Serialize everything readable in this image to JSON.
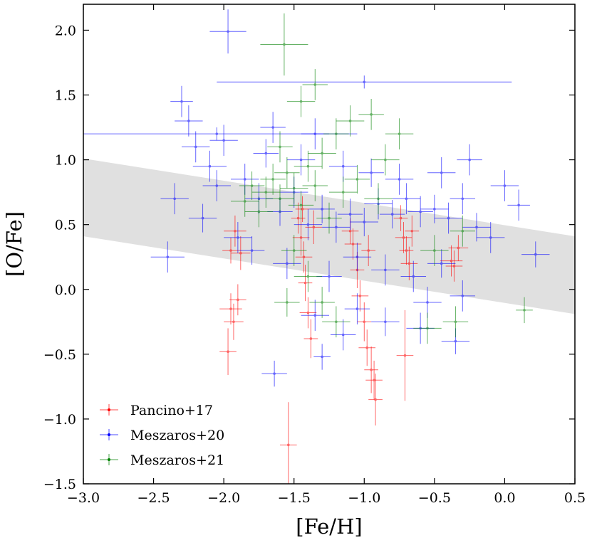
{
  "chart_data": {
    "type": "scatter",
    "title": "",
    "xlabel": "[Fe/H]",
    "ylabel": "[O/Fe]",
    "xlim": [
      -3.0,
      0.5
    ],
    "ylim": [
      -1.5,
      2.2
    ],
    "x_ticks": [
      {
        "value": -3.0,
        "label": "−3.0"
      },
      {
        "value": -2.5,
        "label": "−2.5"
      },
      {
        "value": -2.0,
        "label": "−2.0"
      },
      {
        "value": -1.5,
        "label": "−1.5"
      },
      {
        "value": -1.0,
        "label": "−1.0"
      },
      {
        "value": -0.5,
        "label": "−0.5"
      },
      {
        "value": 0.0,
        "label": "0.0"
      },
      {
        "value": 0.5,
        "label": "0.5"
      }
    ],
    "y_ticks": [
      {
        "value": -1.5,
        "label": "−1.5"
      },
      {
        "value": -1.0,
        "label": "−1.0"
      },
      {
        "value": -0.5,
        "label": "−0.5"
      },
      {
        "value": 0.0,
        "label": "0.0"
      },
      {
        "value": 0.5,
        "label": "0.5"
      },
      {
        "value": 1.0,
        "label": "1.0"
      },
      {
        "value": 1.5,
        "label": "1.5"
      },
      {
        "value": 2.0,
        "label": "2.0"
      }
    ],
    "grid": false,
    "legend_position": "lower-left",
    "shaded_band": {
      "color": "#e0e0e0",
      "lower": [
        [
          -3.0,
          0.41
        ],
        [
          0.5,
          -0.19
        ]
      ],
      "upper": [
        [
          -3.0,
          1.01
        ],
        [
          0.5,
          0.41
        ]
      ]
    },
    "series": [
      {
        "name": "Pancino+17",
        "color": "#ff0000",
        "points": [
          {
            "x": -1.97,
            "y": -0.48,
            "xerr": 0.06,
            "yerr": 0.18
          },
          {
            "x": -1.95,
            "y": -0.15,
            "xerr": 0.08,
            "yerr": 0.12
          },
          {
            "x": -1.93,
            "y": -0.25,
            "xerr": 0.07,
            "yerr": 0.14
          },
          {
            "x": -1.9,
            "y": -0.08,
            "xerr": 0.06,
            "yerr": 0.12
          },
          {
            "x": -1.92,
            "y": 0.45,
            "xerr": 0.08,
            "yerr": 0.12
          },
          {
            "x": -1.88,
            "y": 0.28,
            "xerr": 0.07,
            "yerr": 0.13
          },
          {
            "x": -1.95,
            "y": 0.3,
            "xerr": 0.06,
            "yerr": 0.1
          },
          {
            "x": -1.54,
            "y": -1.2,
            "xerr": 0.06,
            "yerr": 0.33
          },
          {
            "x": -1.47,
            "y": 0.55,
            "xerr": 0.05,
            "yerr": 0.12
          },
          {
            "x": -1.45,
            "y": 0.4,
            "xerr": 0.06,
            "yerr": 0.14
          },
          {
            "x": -1.43,
            "y": 0.25,
            "xerr": 0.06,
            "yerr": 0.12
          },
          {
            "x": -1.42,
            "y": 0.05,
            "xerr": 0.05,
            "yerr": 0.14
          },
          {
            "x": -1.4,
            "y": -0.18,
            "xerr": 0.06,
            "yerr": 0.12
          },
          {
            "x": -1.38,
            "y": -0.38,
            "xerr": 0.05,
            "yerr": 0.15
          },
          {
            "x": -1.44,
            "y": 0.62,
            "xerr": 0.05,
            "yerr": 0.1
          },
          {
            "x": -1.36,
            "y": 0.48,
            "xerr": 0.06,
            "yerr": 0.13
          },
          {
            "x": -1.08,
            "y": 0.35,
            "xerr": 0.06,
            "yerr": 0.12
          },
          {
            "x": -1.05,
            "y": 0.15,
            "xerr": 0.05,
            "yerr": 0.14
          },
          {
            "x": -1.03,
            "y": -0.05,
            "xerr": 0.06,
            "yerr": 0.12
          },
          {
            "x": -1.0,
            "y": -0.25,
            "xerr": 0.05,
            "yerr": 0.15
          },
          {
            "x": -0.98,
            "y": -0.45,
            "xerr": 0.06,
            "yerr": 0.14
          },
          {
            "x": -0.95,
            "y": -0.62,
            "xerr": 0.05,
            "yerr": 0.18
          },
          {
            "x": -0.93,
            "y": -0.7,
            "xerr": 0.06,
            "yerr": 0.15
          },
          {
            "x": -0.92,
            "y": -0.85,
            "xerr": 0.05,
            "yerr": 0.2
          },
          {
            "x": -1.1,
            "y": 0.45,
            "xerr": 0.06,
            "yerr": 0.1
          },
          {
            "x": -0.97,
            "y": 0.3,
            "xerr": 0.05,
            "yerr": 0.12
          },
          {
            "x": -0.74,
            "y": 0.55,
            "xerr": 0.05,
            "yerr": 0.1
          },
          {
            "x": -0.72,
            "y": 0.4,
            "xerr": 0.06,
            "yerr": 0.12
          },
          {
            "x": -0.7,
            "y": 0.3,
            "xerr": 0.05,
            "yerr": 0.11
          },
          {
            "x": -0.68,
            "y": 0.2,
            "xerr": 0.06,
            "yerr": 0.13
          },
          {
            "x": -0.71,
            "y": -0.51,
            "xerr": 0.06,
            "yerr": 0.35
          },
          {
            "x": -0.66,
            "y": 0.45,
            "xerr": 0.05,
            "yerr": 0.12
          },
          {
            "x": -0.38,
            "y": 0.22,
            "xerr": 0.08,
            "yerr": 0.12
          },
          {
            "x": -0.33,
            "y": 0.32,
            "xerr": 0.07,
            "yerr": 0.1
          },
          {
            "x": -0.36,
            "y": 0.18,
            "xerr": 0.06,
            "yerr": 0.12
          }
        ]
      },
      {
        "name": "Meszaros+20",
        "color": "#0000ff",
        "points": [
          {
            "x": -1.97,
            "y": 1.99,
            "xerr": 0.13,
            "yerr": 0.17
          },
          {
            "x": -1.0,
            "y": 1.6,
            "xerr": 1.05,
            "yerr": 0.05
          },
          {
            "x": -2.05,
            "y": 1.2,
            "xerr": 1.0,
            "yerr": 0.05
          },
          {
            "x": -2.3,
            "y": 1.45,
            "xerr": 0.08,
            "yerr": 0.12
          },
          {
            "x": -2.25,
            "y": 1.3,
            "xerr": 0.1,
            "yerr": 0.12
          },
          {
            "x": -1.64,
            "y": -0.65,
            "xerr": 0.09,
            "yerr": 0.1
          },
          {
            "x": -2.4,
            "y": 0.25,
            "xerr": 0.12,
            "yerr": 0.12
          },
          {
            "x": 0.1,
            "y": 0.65,
            "xerr": 0.08,
            "yerr": 0.12
          },
          {
            "x": 0.22,
            "y": 0.27,
            "xerr": 0.1,
            "yerr": 0.1
          },
          {
            "x": -0.35,
            "y": -0.4,
            "xerr": 0.1,
            "yerr": 0.1
          },
          {
            "x": -1.3,
            "y": -0.52,
            "xerr": 0.06,
            "yerr": 0.1
          },
          {
            "x": -2.1,
            "y": 0.95,
            "xerr": 0.12,
            "yerr": 0.12
          },
          {
            "x": -1.85,
            "y": 0.85,
            "xerr": 0.1,
            "yerr": 0.12
          },
          {
            "x": -1.75,
            "y": 0.7,
            "xerr": 0.1,
            "yerr": 0.12
          },
          {
            "x": -1.6,
            "y": 0.6,
            "xerr": 0.09,
            "yerr": 0.11
          },
          {
            "x": -1.5,
            "y": 0.75,
            "xerr": 0.1,
            "yerr": 0.12
          },
          {
            "x": -1.4,
            "y": 0.5,
            "xerr": 0.1,
            "yerr": 0.12
          },
          {
            "x": -1.3,
            "y": 0.62,
            "xerr": 0.09,
            "yerr": 0.11
          },
          {
            "x": -1.2,
            "y": 0.48,
            "xerr": 0.1,
            "yerr": 0.12
          },
          {
            "x": -1.1,
            "y": 0.58,
            "xerr": 0.09,
            "yerr": 0.12
          },
          {
            "x": -1.0,
            "y": 0.52,
            "xerr": 0.1,
            "yerr": 0.11
          },
          {
            "x": -0.9,
            "y": 0.66,
            "xerr": 0.1,
            "yerr": 0.12
          },
          {
            "x": -0.8,
            "y": 0.58,
            "xerr": 0.09,
            "yerr": 0.11
          },
          {
            "x": -0.7,
            "y": 0.7,
            "xerr": 0.1,
            "yerr": 0.12
          },
          {
            "x": -0.6,
            "y": 0.6,
            "xerr": 0.09,
            "yerr": 0.12
          },
          {
            "x": -0.5,
            "y": 0.62,
            "xerr": 0.1,
            "yerr": 0.11
          },
          {
            "x": -0.4,
            "y": 0.55,
            "xerr": 0.1,
            "yerr": 0.12
          },
          {
            "x": -0.3,
            "y": 0.7,
            "xerr": 0.09,
            "yerr": 0.12
          },
          {
            "x": -0.2,
            "y": 0.48,
            "xerr": 0.1,
            "yerr": 0.11
          },
          {
            "x": -0.1,
            "y": 0.4,
            "xerr": 0.1,
            "yerr": 0.12
          },
          {
            "x": -1.9,
            "y": 0.4,
            "xerr": 0.1,
            "yerr": 0.12
          },
          {
            "x": -1.8,
            "y": 0.3,
            "xerr": 0.09,
            "yerr": 0.11
          },
          {
            "x": -1.55,
            "y": 0.2,
            "xerr": 0.1,
            "yerr": 0.12
          },
          {
            "x": -1.25,
            "y": 0.1,
            "xerr": 0.09,
            "yerr": 0.12
          },
          {
            "x": -1.05,
            "y": 0.25,
            "xerr": 0.1,
            "yerr": 0.11
          },
          {
            "x": -0.85,
            "y": 0.15,
            "xerr": 0.1,
            "yerr": 0.12
          },
          {
            "x": -0.65,
            "y": 0.1,
            "xerr": 0.09,
            "yerr": 0.12
          },
          {
            "x": -0.45,
            "y": 0.2,
            "xerr": 0.1,
            "yerr": 0.11
          },
          {
            "x": -0.55,
            "y": -0.1,
            "xerr": 0.1,
            "yerr": 0.12
          },
          {
            "x": -0.3,
            "y": -0.05,
            "xerr": 0.09,
            "yerr": 0.12
          },
          {
            "x": -2.2,
            "y": 1.1,
            "xerr": 0.1,
            "yerr": 0.12
          },
          {
            "x": -2.0,
            "y": 1.15,
            "xerr": 0.1,
            "yerr": 0.12
          },
          {
            "x": -1.7,
            "y": 1.05,
            "xerr": 0.09,
            "yerr": 0.11
          },
          {
            "x": -1.45,
            "y": 1.0,
            "xerr": 0.1,
            "yerr": 0.12
          },
          {
            "x": -1.15,
            "y": 0.95,
            "xerr": 0.1,
            "yerr": 0.12
          },
          {
            "x": -0.95,
            "y": 0.9,
            "xerr": 0.09,
            "yerr": 0.11
          },
          {
            "x": -0.75,
            "y": 0.85,
            "xerr": 0.1,
            "yerr": 0.12
          },
          {
            "x": -0.45,
            "y": 0.9,
            "xerr": 0.1,
            "yerr": 0.12
          },
          {
            "x": -0.25,
            "y": 1.0,
            "xerr": 0.09,
            "yerr": 0.12
          },
          {
            "x": 0.0,
            "y": 0.8,
            "xerr": 0.1,
            "yerr": 0.12
          },
          {
            "x": -2.35,
            "y": 0.7,
            "xerr": 0.1,
            "yerr": 0.12
          },
          {
            "x": -2.15,
            "y": 0.55,
            "xerr": 0.1,
            "yerr": 0.11
          },
          {
            "x": -2.05,
            "y": 0.8,
            "xerr": 0.1,
            "yerr": 0.12
          },
          {
            "x": -1.65,
            "y": 1.25,
            "xerr": 0.09,
            "yerr": 0.12
          },
          {
            "x": -1.35,
            "y": 1.2,
            "xerr": 0.1,
            "yerr": 0.12
          },
          {
            "x": -1.05,
            "y": -0.15,
            "xerr": 0.09,
            "yerr": 0.12
          },
          {
            "x": -0.85,
            "y": -0.25,
            "xerr": 0.1,
            "yerr": 0.11
          },
          {
            "x": -1.35,
            "y": -0.2,
            "xerr": 0.1,
            "yerr": 0.12
          },
          {
            "x": -1.15,
            "y": -0.35,
            "xerr": 0.09,
            "yerr": 0.12
          },
          {
            "x": -0.6,
            "y": -0.3,
            "xerr": 0.1,
            "yerr": 0.12
          }
        ]
      },
      {
        "name": "Meszaros+21",
        "color": "#008000",
        "points": [
          {
            "x": -1.57,
            "y": 1.89,
            "xerr": 0.17,
            "yerr": 0.24
          },
          {
            "x": -1.7,
            "y": 0.75,
            "xerr": 0.1,
            "yerr": 0.12
          },
          {
            "x": -1.65,
            "y": 0.85,
            "xerr": 0.09,
            "yerr": 0.12
          },
          {
            "x": -1.6,
            "y": 0.7,
            "xerr": 0.1,
            "yerr": 0.11
          },
          {
            "x": -1.55,
            "y": 0.9,
            "xerr": 0.09,
            "yerr": 0.12
          },
          {
            "x": -1.5,
            "y": 0.78,
            "xerr": 0.1,
            "yerr": 0.12
          },
          {
            "x": -1.45,
            "y": 0.65,
            "xerr": 0.09,
            "yerr": 0.11
          },
          {
            "x": -1.4,
            "y": 0.95,
            "xerr": 0.1,
            "yerr": 0.12
          },
          {
            "x": -1.35,
            "y": 0.8,
            "xerr": 0.09,
            "yerr": 0.12
          },
          {
            "x": -1.3,
            "y": 1.05,
            "xerr": 0.1,
            "yerr": 0.12
          },
          {
            "x": -1.2,
            "y": 1.2,
            "xerr": 0.09,
            "yerr": 0.12
          },
          {
            "x": -1.1,
            "y": 1.3,
            "xerr": 0.1,
            "yerr": 0.12
          },
          {
            "x": -0.95,
            "y": 1.35,
            "xerr": 0.09,
            "yerr": 0.12
          },
          {
            "x": -1.45,
            "y": 1.45,
            "xerr": 0.1,
            "yerr": 0.12
          },
          {
            "x": -1.35,
            "y": 1.58,
            "xerr": 0.09,
            "yerr": 0.12
          },
          {
            "x": -0.75,
            "y": 1.2,
            "xerr": 0.1,
            "yerr": 0.12
          },
          {
            "x": -1.75,
            "y": 0.6,
            "xerr": 0.1,
            "yerr": 0.12
          },
          {
            "x": -1.8,
            "y": 0.8,
            "xerr": 0.09,
            "yerr": 0.11
          },
          {
            "x": -1.85,
            "y": 0.68,
            "xerr": 0.1,
            "yerr": 0.12
          },
          {
            "x": -1.25,
            "y": 0.55,
            "xerr": 0.09,
            "yerr": 0.12
          },
          {
            "x": -1.15,
            "y": 0.75,
            "xerr": 0.1,
            "yerr": 0.12
          },
          {
            "x": -1.05,
            "y": 0.85,
            "xerr": 0.09,
            "yerr": 0.11
          },
          {
            "x": -0.9,
            "y": 0.7,
            "xerr": 0.1,
            "yerr": 0.12
          },
          {
            "x": -1.5,
            "y": 0.3,
            "xerr": 0.09,
            "yerr": 0.12
          },
          {
            "x": -1.4,
            "y": 0.1,
            "xerr": 0.1,
            "yerr": 0.12
          },
          {
            "x": -1.3,
            "y": -0.1,
            "xerr": 0.09,
            "yerr": 0.12
          },
          {
            "x": -1.2,
            "y": -0.25,
            "xerr": 0.1,
            "yerr": 0.12
          },
          {
            "x": -1.55,
            "y": -0.1,
            "xerr": 0.09,
            "yerr": 0.11
          },
          {
            "x": -0.55,
            "y": -0.3,
            "xerr": 0.1,
            "yerr": 0.12
          },
          {
            "x": -0.35,
            "y": -0.25,
            "xerr": 0.09,
            "yerr": 0.12
          },
          {
            "x": 0.14,
            "y": -0.16,
            "xerr": 0.06,
            "yerr": 0.1
          },
          {
            "x": -0.5,
            "y": 0.3,
            "xerr": 0.1,
            "yerr": 0.12
          },
          {
            "x": -0.3,
            "y": 0.45,
            "xerr": 0.09,
            "yerr": 0.12
          },
          {
            "x": -0.85,
            "y": 1.0,
            "xerr": 0.1,
            "yerr": 0.12
          },
          {
            "x": -1.6,
            "y": 1.1,
            "xerr": 0.09,
            "yerr": 0.12
          }
        ]
      }
    ]
  }
}
